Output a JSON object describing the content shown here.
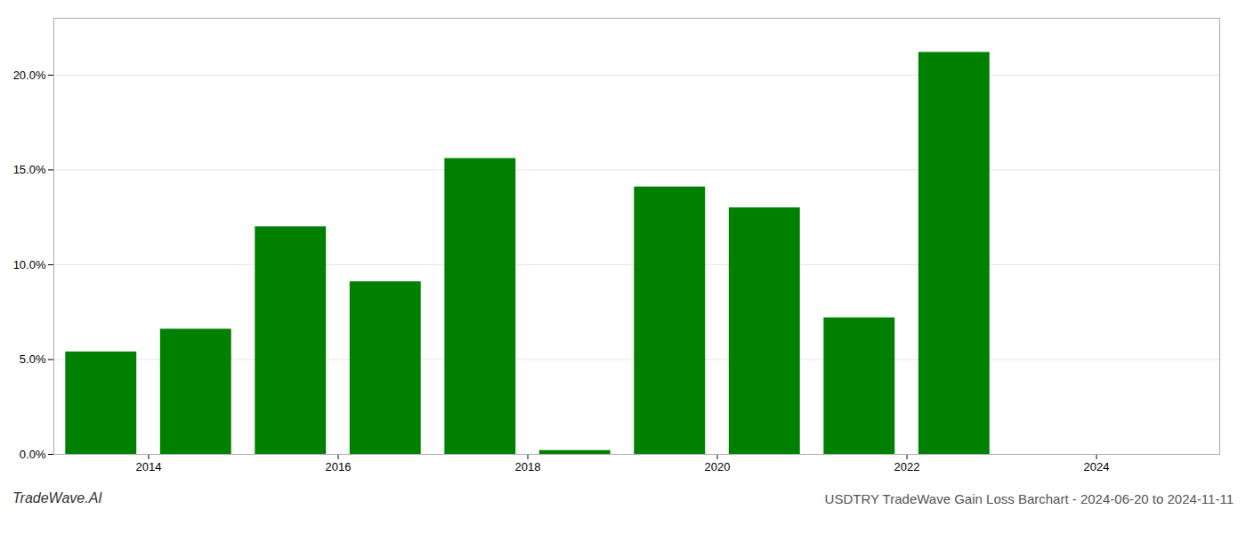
{
  "chart_data": {
    "type": "bar",
    "title": "USDTRY TradeWave Gain Loss Barchart - 2024-06-20 to 2024-11-11",
    "annotations": [
      "TradeWave.AI"
    ],
    "x": [
      2013,
      2014,
      2015,
      2016,
      2017,
      2018,
      2019,
      2020,
      2021,
      2022,
      2023,
      2024
    ],
    "values": [
      0.054,
      0.066,
      0.12,
      0.091,
      0.156,
      0.002,
      0.141,
      0.13,
      0.072,
      0.212,
      0.0,
      0.0
    ],
    "color": "#008000",
    "xlim": [
      2012.5,
      2024.8
    ],
    "xticks": [
      {
        "value": 2013.5,
        "label": "2014"
      },
      {
        "value": 2015.5,
        "label": "2016"
      },
      {
        "value": 2017.5,
        "label": "2018"
      },
      {
        "value": 2019.5,
        "label": "2020"
      },
      {
        "value": 2021.5,
        "label": "2022"
      },
      {
        "value": 2023.5,
        "label": "2024"
      }
    ],
    "ylim": [
      0,
      0.23
    ],
    "yticks": [
      {
        "value": 0.0,
        "label": "0.0%"
      },
      {
        "value": 0.05,
        "label": "5.0%"
      },
      {
        "value": 0.1,
        "label": "10.0%"
      },
      {
        "value": 0.15,
        "label": "15.0%"
      },
      {
        "value": 0.2,
        "label": "20.0%"
      }
    ],
    "grid": true
  }
}
